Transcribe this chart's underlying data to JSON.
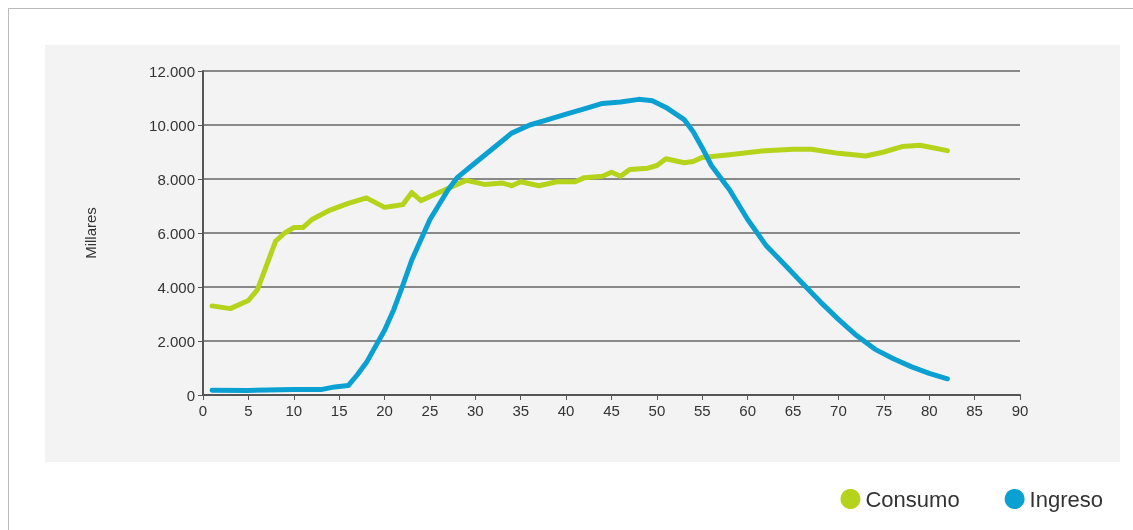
{
  "chart_data": {
    "type": "line",
    "ylabel": "Millares",
    "xlim": [
      0,
      90
    ],
    "xticks": [
      0,
      5,
      10,
      15,
      20,
      25,
      30,
      35,
      40,
      45,
      50,
      55,
      60,
      65,
      70,
      75,
      80,
      85,
      90
    ],
    "ylim": [
      0,
      12000
    ],
    "yticks": [
      {
        "value": 0,
        "label": "0"
      },
      {
        "value": 2000,
        "label": "2.000"
      },
      {
        "value": 4000,
        "label": "4.000"
      },
      {
        "value": 6000,
        "label": "6.000"
      },
      {
        "value": 8000,
        "label": "8.000"
      },
      {
        "value": 10000,
        "label": "10.000"
      },
      {
        "value": 12000,
        "label": "12.000"
      }
    ],
    "grid": "y",
    "legend": "bottom right",
    "marker": "none",
    "line_style": "solid",
    "series": [
      {
        "name": "Consumo",
        "color": "#b5d31a",
        "x": [
          1,
          3,
          5,
          6,
          7,
          8,
          9,
          10,
          11,
          12,
          14,
          16,
          18,
          20,
          21,
          22,
          23,
          24,
          26,
          28,
          29,
          31,
          33,
          34,
          35,
          37,
          39,
          41,
          42,
          44,
          45,
          46,
          47,
          49,
          50,
          51,
          53,
          54,
          55,
          58,
          62,
          65,
          67,
          70,
          73,
          75,
          77,
          79,
          82
        ],
        "values": [
          3300,
          3200,
          3500,
          3900,
          4800,
          5700,
          6000,
          6200,
          6200,
          6500,
          6850,
          7100,
          7300,
          6950,
          7000,
          7050,
          7500,
          7200,
          7500,
          7800,
          7950,
          7800,
          7850,
          7750,
          7900,
          7750,
          7900,
          7900,
          8050,
          8100,
          8250,
          8100,
          8350,
          8400,
          8500,
          8750,
          8600,
          8650,
          8800,
          8900,
          9050,
          9100,
          9100,
          8950,
          8850,
          9000,
          9200,
          9250,
          9050
        ]
      },
      {
        "name": "Ingreso",
        "color": "#0aa0d2",
        "x": [
          1,
          5,
          10,
          13,
          14.5,
          16,
          17,
          18,
          20,
          21,
          22,
          23,
          25,
          27,
          28,
          30,
          32,
          34,
          36,
          38,
          40,
          42,
          44,
          46,
          48,
          49.5,
          51,
          53,
          54,
          55,
          56,
          58,
          60,
          62,
          64,
          66,
          68,
          70,
          72,
          74,
          76,
          78,
          80,
          82
        ],
        "values": [
          180,
          170,
          200,
          200,
          300,
          350,
          750,
          1200,
          2400,
          3150,
          4050,
          5000,
          6500,
          7600,
          8050,
          8600,
          9150,
          9700,
          10000,
          10200,
          10400,
          10600,
          10800,
          10850,
          10950,
          10900,
          10650,
          10200,
          9750,
          9150,
          8500,
          7600,
          6500,
          5550,
          4850,
          4150,
          3450,
          2800,
          2200,
          1700,
          1350,
          1050,
          800,
          600
        ]
      }
    ]
  }
}
